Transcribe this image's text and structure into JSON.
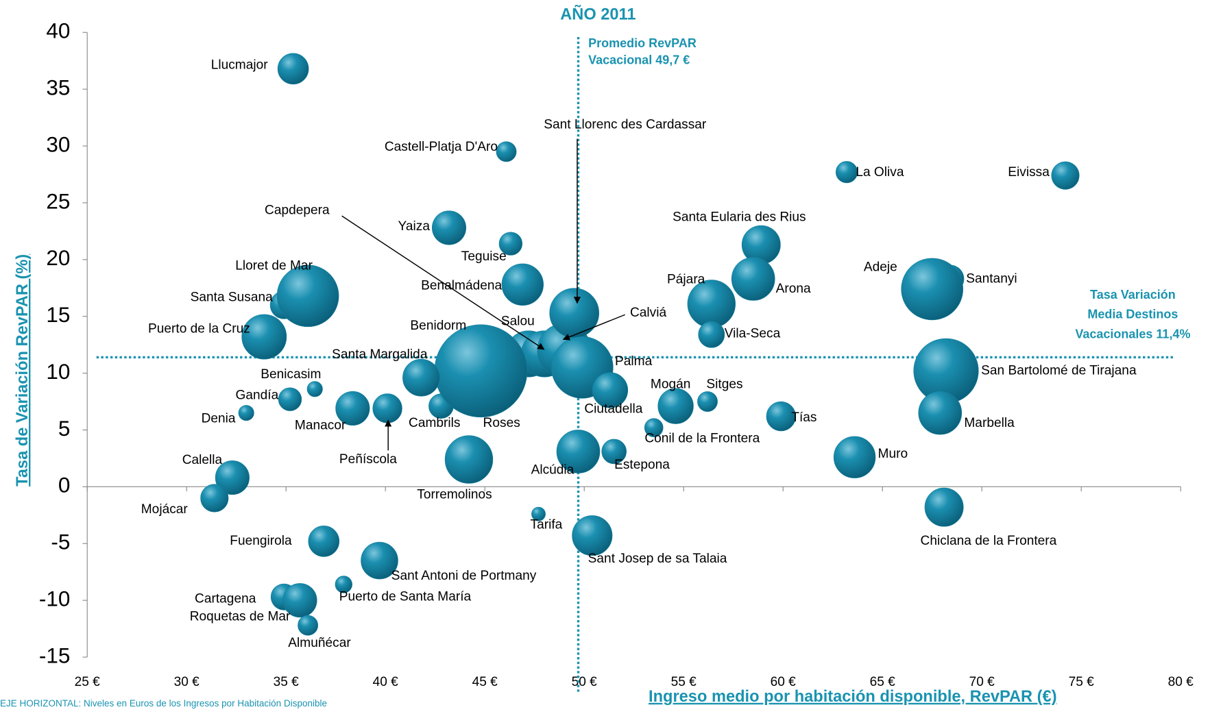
{
  "chart_data": {
    "type": "bubble",
    "subtitle": "AÑO 2011",
    "x_label": "Ingreso medio por habitación disponible, RevPAR (€)",
    "y_label": "Tasa de Variación RevPAR (%)",
    "footnote": "EJE HORIZONTAL: Niveles en Euros de los Ingresos por Habitación Disponible",
    "color": "#127f9f",
    "xlim": [
      25,
      80
    ],
    "ylim": [
      -15,
      40
    ],
    "xticks": [
      {
        "value": 25,
        "label": "25 €"
      },
      {
        "value": 30,
        "label": "30 €"
      },
      {
        "value": 35,
        "label": "35 €"
      },
      {
        "value": 40,
        "label": "40 €"
      },
      {
        "value": 45,
        "label": "45 €"
      },
      {
        "value": 50,
        "label": "50 €"
      },
      {
        "value": 55,
        "label": "55 €"
      },
      {
        "value": 60,
        "label": "60 €"
      },
      {
        "value": 65,
        "label": "65 €"
      },
      {
        "value": 70,
        "label": "70 €"
      },
      {
        "value": 75,
        "label": "75 €"
      },
      {
        "value": 80,
        "label": "80 €"
      }
    ],
    "yticks": [
      -15,
      -10,
      -5,
      0,
      5,
      10,
      15,
      20,
      25,
      30,
      35,
      40
    ],
    "reference_lines": [
      {
        "axis": "x",
        "value": 49.7,
        "label": [
          "Promedio RevPAR",
          "Vacacional 49,7 €"
        ]
      },
      {
        "axis": "y",
        "value": 11.4,
        "label": [
          "Tasa Variación",
          "Media Destinos",
          "Vacacionales  11,4%"
        ]
      }
    ],
    "points": [
      {
        "label": "Llucmajor",
        "x": 35.36,
        "y": 36.8,
        "size": 20
      },
      {
        "label": "Castell-Platja D'Aro",
        "x": 46.08,
        "y": 29.5,
        "size": 13
      },
      {
        "label": "La Oliva",
        "x": 63.2,
        "y": 27.7,
        "size": 14
      },
      {
        "label": "Eivissa",
        "x": 74.2,
        "y": 27.4,
        "size": 18
      },
      {
        "label": "Yaiza",
        "x": 43.2,
        "y": 22.8,
        "size": 22
      },
      {
        "label": "Teguise",
        "x": 46.3,
        "y": 21.4,
        "size": 15
      },
      {
        "label": "Santa Eularia des Rius",
        "x": 58.9,
        "y": 21.3,
        "size": 25
      },
      {
        "label": "Benalmádena",
        "x": 46.9,
        "y": 17.8,
        "size": 27
      },
      {
        "label": "Arona",
        "x": 58.5,
        "y": 18.3,
        "size": 28
      },
      {
        "label": "Santa Susana",
        "x": 34.9,
        "y": 16.0,
        "size": 18
      },
      {
        "label": "Lloret de Mar",
        "x": 36.1,
        "y": 16.8,
        "size": 40
      },
      {
        "label": "Santanyi",
        "x": 68.4,
        "y": 18.3,
        "size": 18
      },
      {
        "label": "Adeje",
        "x": 67.5,
        "y": 17.4,
        "size": 40
      },
      {
        "label": "Pájara",
        "x": 56.4,
        "y": 16.1,
        "size": 31
      },
      {
        "label": "Puerto de la Cruz",
        "x": 33.9,
        "y": 13.2,
        "size": 29
      },
      {
        "label": "Vila-Seca",
        "x": 56.4,
        "y": 13.4,
        "size": 17
      },
      {
        "label": "Roses",
        "x": 44.7,
        "y": 7.7,
        "size": 14
      },
      {
        "label": "Cambrils",
        "x": 42.8,
        "y": 7.1,
        "size": 16
      },
      {
        "label": "Salou",
        "x": 47.2,
        "y": 11.7,
        "size": 30
      },
      {
        "label": "Capdepera",
        "x": 48.0,
        "y": 11.7,
        "size": 30
      },
      {
        "label": "Calviá",
        "x": 49.0,
        "y": 12.0,
        "size": 35
      },
      {
        "label": "Benidorm",
        "x": 44.8,
        "y": 10.2,
        "size": 60
      },
      {
        "label": "Sant Llorenc des Cardassar",
        "x": 49.5,
        "y": 15.3,
        "size": 32
      },
      {
        "label": "Palma",
        "x": 49.9,
        "y": 10.5,
        "size": 40
      },
      {
        "label": "Santa Margalida",
        "x": 41.8,
        "y": 9.6,
        "size": 24
      },
      {
        "label": "San Bartolomé de Tirajana",
        "x": 68.2,
        "y": 10.2,
        "size": 42
      },
      {
        "label": "Benicasim",
        "x": 36.45,
        "y": 8.6,
        "size": 10
      },
      {
        "label": "Ciutadella",
        "x": 51.3,
        "y": 8.5,
        "size": 23
      },
      {
        "label": "Gandía",
        "x": 35.2,
        "y": 7.7,
        "size": 15
      },
      {
        "label": "Manacor",
        "x": 38.35,
        "y": 6.9,
        "size": 22
      },
      {
        "label": "Peñíscola",
        "x": 40.1,
        "y": 6.9,
        "size": 19
      },
      {
        "label": "Mogán",
        "x": 54.6,
        "y": 7.1,
        "size": 23
      },
      {
        "label": "Sitges",
        "x": 56.2,
        "y": 7.5,
        "size": 13
      },
      {
        "label": "Marbella",
        "x": 67.9,
        "y": 6.5,
        "size": 28
      },
      {
        "label": "Denia",
        "x": 33.0,
        "y": 6.5,
        "size": 10
      },
      {
        "label": "Tías",
        "x": 59.9,
        "y": 6.2,
        "size": 19
      },
      {
        "label": "Conil de la Frontera",
        "x": 53.5,
        "y": 5.2,
        "size": 12
      },
      {
        "label": "Muro",
        "x": 63.6,
        "y": 2.6,
        "size": 27
      },
      {
        "label": "Alcúdia",
        "x": 49.7,
        "y": 3.1,
        "size": 28
      },
      {
        "label": "Estepona",
        "x": 51.5,
        "y": 3.1,
        "size": 16
      },
      {
        "label": "Torremolinos",
        "x": 44.2,
        "y": 2.4,
        "size": 31
      },
      {
        "label": "Calella",
        "x": 32.3,
        "y": 0.8,
        "size": 22
      },
      {
        "label": "Mojácar",
        "x": 31.4,
        "y": -1.0,
        "size": 18
      },
      {
        "label": "Chiclana de la Frontera",
        "x": 68.1,
        "y": -1.8,
        "size": 25
      },
      {
        "label": "Tarifa",
        "x": 47.7,
        "y": -2.4,
        "size": 9
      },
      {
        "label": "Sant Josep de sa Talaia",
        "x": 50.4,
        "y": -4.3,
        "size": 26
      },
      {
        "label": "Fuengirola",
        "x": 36.9,
        "y": -4.8,
        "size": 20
      },
      {
        "label": "Sant Antoni de Portmany",
        "x": 39.7,
        "y": -6.5,
        "size": 24
      },
      {
        "label": "Puerto de Santa María",
        "x": 37.9,
        "y": -8.6,
        "size": 11
      },
      {
        "label": "Cartagena",
        "x": 34.9,
        "y": -9.7,
        "size": 17
      },
      {
        "label": "Roquetas de Mar",
        "x": 35.7,
        "y": -10.0,
        "size": 22
      },
      {
        "label": "Almuñécar",
        "x": 36.1,
        "y": -12.2,
        "size": 13
      }
    ]
  }
}
